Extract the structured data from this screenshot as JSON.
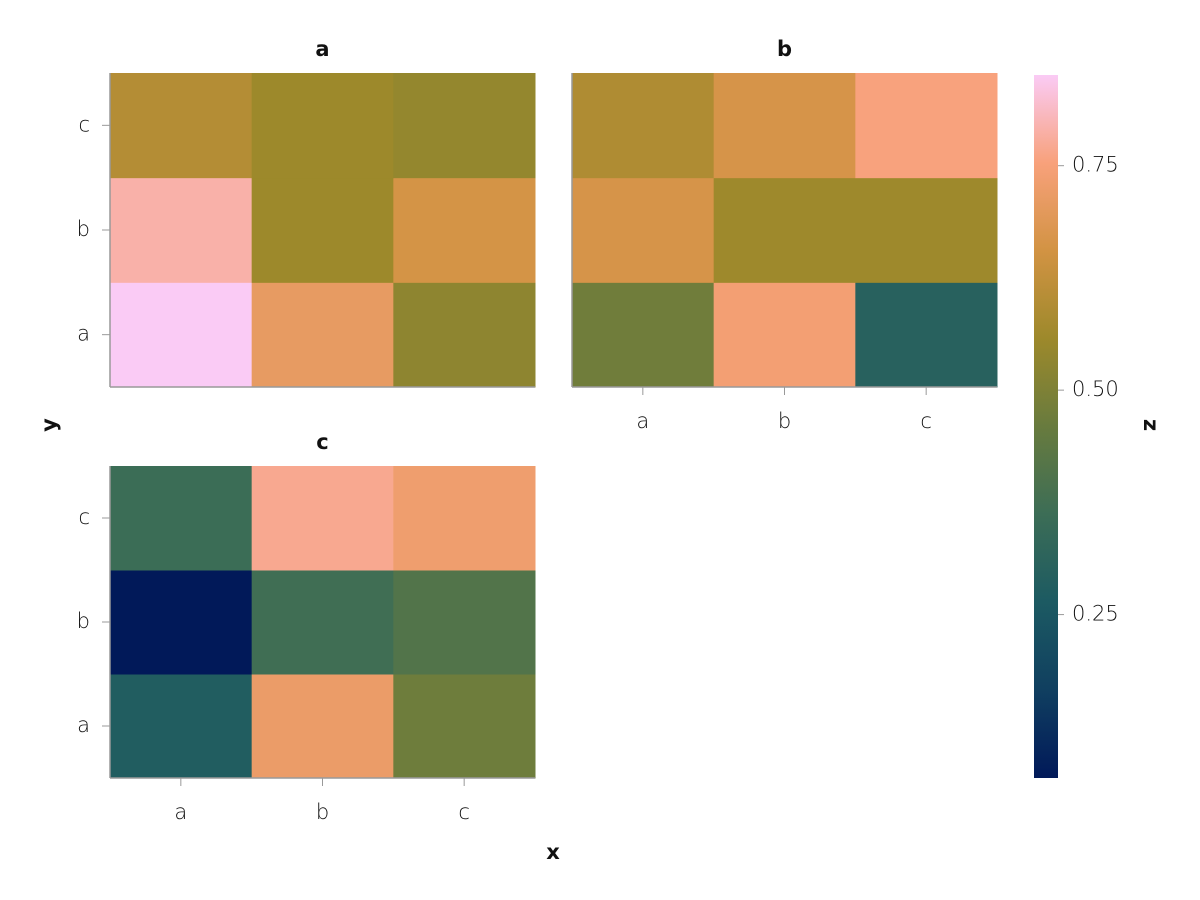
{
  "chart_data": {
    "type": "heatmap",
    "x_label": "x",
    "y_label": "y",
    "x_categories": [
      "a",
      "b",
      "c"
    ],
    "y_categories": [
      "a",
      "b",
      "c"
    ],
    "colormap": "batlow",
    "facets": [
      {
        "title": "a",
        "values": [
          [
            0.851,
            0.71,
            0.53
          ],
          [
            0.79,
            0.557,
            0.66
          ],
          [
            0.6,
            0.558,
            0.54
          ]
        ]
      },
      {
        "title": "b",
        "values": [
          [
            0.475,
            0.74,
            0.3
          ],
          [
            0.665,
            0.56,
            0.56
          ],
          [
            0.59,
            0.665,
            0.755
          ]
        ]
      },
      {
        "title": "c",
        "values": [
          [
            0.28,
            0.72,
            0.47
          ],
          [
            0.068,
            0.37,
            0.41
          ],
          [
            0.36,
            0.77,
            0.73
          ]
        ]
      }
    ],
    "colorbar": {
      "label": "z",
      "lim": [
        0.068,
        0.851
      ],
      "ticks": [
        0.25,
        {
          "value": 0.5,
          "label": "0.50"
        },
        0.75
      ]
    }
  }
}
